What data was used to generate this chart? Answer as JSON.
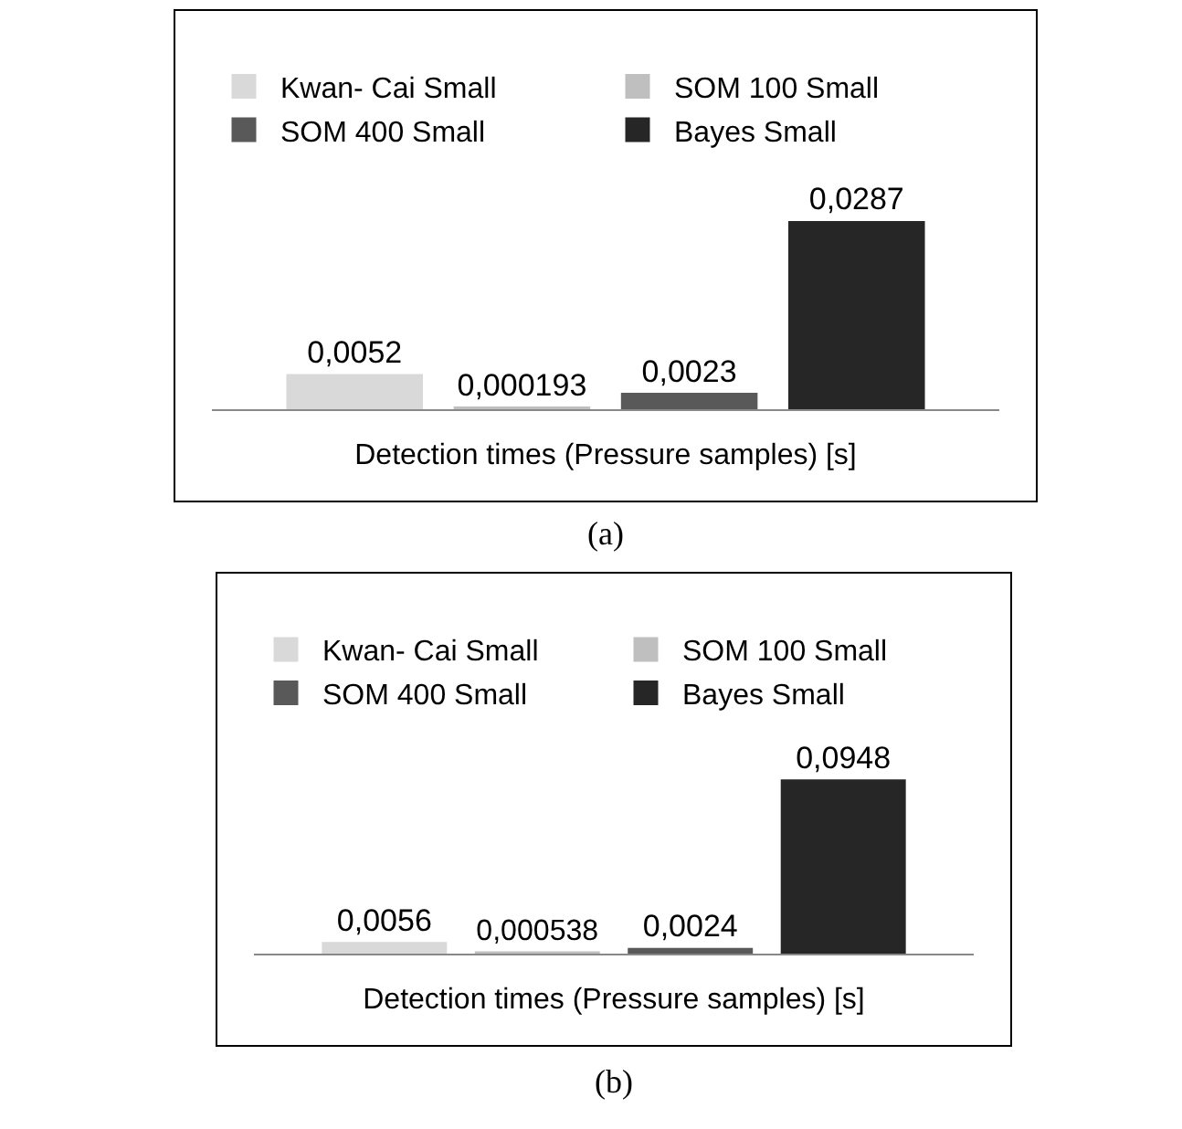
{
  "chart_data": [
    {
      "type": "bar",
      "categories": [
        null
      ],
      "xlabel": "Detection times (Pressure samples) [s]",
      "legend": "top",
      "annotations": [
        "(a)"
      ],
      "series": [
        {
          "name": "Kwan- Cai Small",
          "color": "#d9d9d9",
          "values": [
            0.0052
          ],
          "value_labels": [
            "0,0052"
          ]
        },
        {
          "name": "SOM 100 Small",
          "color": "#bfbfbf",
          "values": [
            0.000193
          ],
          "value_labels": [
            "0,000193"
          ]
        },
        {
          "name": "SOM 400 Small",
          "color": "#595959",
          "values": [
            0.0023
          ],
          "value_labels": [
            "0,0023"
          ]
        },
        {
          "name": "Bayes Small",
          "color": "#262626",
          "values": [
            0.0287
          ],
          "value_labels": [
            "0,0287"
          ]
        }
      ]
    },
    {
      "type": "bar",
      "categories": [
        null
      ],
      "xlabel": "Detection times (Pressure samples) [s]",
      "legend": "top",
      "annotations": [
        "(b)"
      ],
      "series": [
        {
          "name": "Kwan- Cai Small",
          "color": "#d9d9d9",
          "values": [
            0.0056
          ],
          "value_labels": [
            "0,0056"
          ]
        },
        {
          "name": "SOM 100 Small",
          "color": "#bfbfbf",
          "values": [
            0.000538
          ],
          "value_labels": [
            "0,000538"
          ]
        },
        {
          "name": "SOM 400 Small",
          "color": "#595959",
          "values": [
            0.0024
          ],
          "value_labels": [
            "0,0024"
          ]
        },
        {
          "name": "Bayes Small",
          "color": "#262626",
          "values": [
            0.0948
          ],
          "value_labels": [
            "0,0948"
          ]
        }
      ]
    }
  ]
}
